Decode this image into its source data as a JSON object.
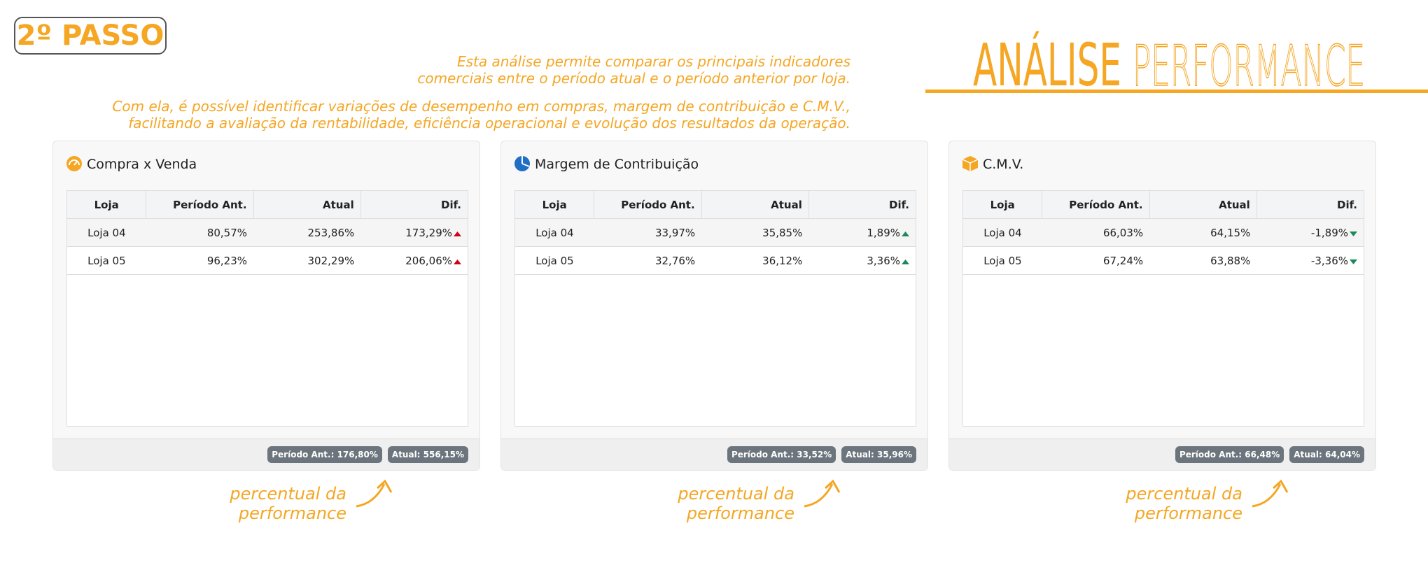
{
  "step": "2º PASSO",
  "title": {
    "bold": "ANÁLISE",
    "light": "PERFORMANCE"
  },
  "intro": [
    "Esta análise permite comparar os principais indicadores",
    "comerciais entre o período atual e o período anterior por loja.",
    "Com ela, é possível identificar variações de desempenho em compras, margem de contribuição e C.M.V.,",
    "facilitando a avaliação da rentabilidade, eficiência operacional e evolução dos resultados da operação."
  ],
  "panels": [
    {
      "title": "Compra x Venda",
      "columns": [
        "Loja",
        "Período Ant.",
        "Atual",
        "Dif."
      ],
      "rows": [
        [
          "Loja 04",
          "80,57%",
          "253,86%",
          "173,29%"
        ],
        [
          "Loja 05",
          "96,23%",
          "302,29%",
          "206,06%"
        ]
      ],
      "footer": [
        "Período Ant.: 176,80%",
        "Atual: 556,15%"
      ]
    },
    {
      "title": "Margem de Contribuição",
      "columns": [
        "Loja",
        "Período Ant.",
        "Atual",
        "Dif."
      ],
      "rows": [
        [
          "Loja 04",
          "33,97%",
          "35,85%",
          "1,89%"
        ],
        [
          "Loja 05",
          "32,76%",
          "36,12%",
          "3,36%"
        ]
      ],
      "footer": [
        "Período Ant.: 33,52%",
        "Atual: 35,96%"
      ]
    },
    {
      "title": "C.M.V.",
      "columns": [
        "Loja",
        "Período Ant.",
        "Atual",
        "Dif."
      ],
      "rows": [
        [
          "Loja 04",
          "66,03%",
          "64,15%",
          "-1,89%"
        ],
        [
          "Loja 05",
          "67,24%",
          "63,88%",
          "-3,36%"
        ]
      ],
      "footer": [
        "Período Ant.: 66,48%",
        "Atual: 64,04%"
      ]
    }
  ],
  "annotation": [
    "percentual da",
    "performance"
  ]
}
